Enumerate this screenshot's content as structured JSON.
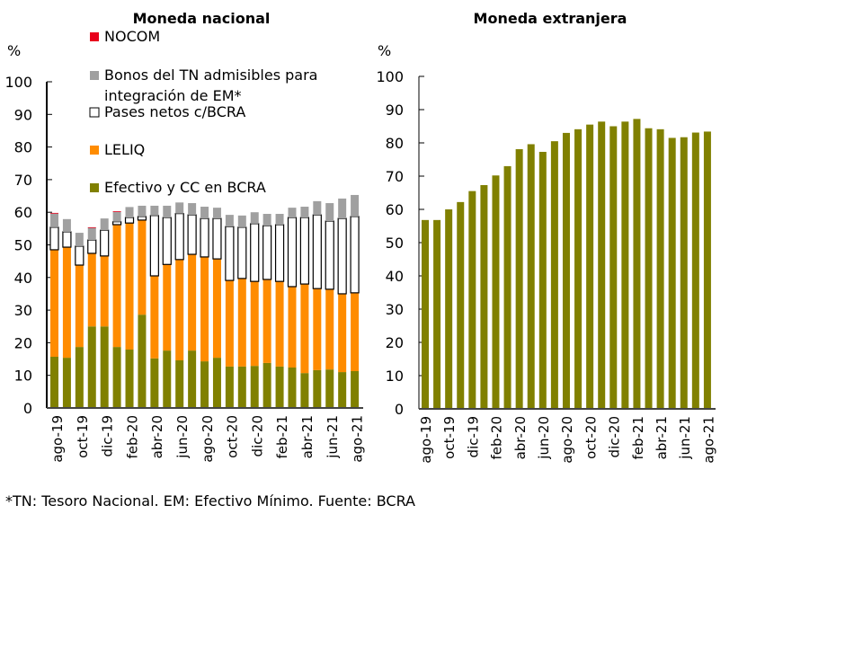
{
  "chart_data": [
    {
      "type": "bar",
      "stacked": true,
      "title": "Moneda nacional",
      "ylabel": "%",
      "xlabel": "",
      "ylim": [
        0,
        100
      ],
      "yticks": [
        0,
        10,
        20,
        30,
        40,
        50,
        60,
        70,
        80,
        90,
        100
      ],
      "grid": false,
      "legend_position": "top-inside",
      "categories": [
        "ago-19",
        "sep-19",
        "oct-19",
        "nov-19",
        "dic-19",
        "ene-20",
        "feb-20",
        "mar-20",
        "abr-20",
        "may-20",
        "jun-20",
        "jul-20",
        "ago-20",
        "sep-20",
        "oct-20",
        "nov-20",
        "dic-20",
        "ene-21",
        "feb-21",
        "mar-21",
        "abr-21",
        "may-21",
        "jun-21",
        "jul-21",
        "ago-21"
      ],
      "tick_labels": [
        "ago-19",
        "oct-19",
        "dic-19",
        "feb-20",
        "abr-20",
        "jun-20",
        "ago-20",
        "oct-20",
        "dic-20",
        "feb-21",
        "abr-21",
        "jun-21",
        "ago-21"
      ],
      "series": [
        {
          "name": "Efectivo y CC en BCRA",
          "color": "#808000",
          "values": [
            15.7,
            15.4,
            18.7,
            25.0,
            25.0,
            18.7,
            17.9,
            28.6,
            15.2,
            17.6,
            14.6,
            17.6,
            14.3,
            15.4,
            12.7,
            12.7,
            12.9,
            13.8,
            12.7,
            12.4,
            10.7,
            11.6,
            11.8,
            11.0,
            11.3
          ]
        },
        {
          "name": "LELIQ",
          "color": "#FF8C00",
          "values": [
            32.8,
            33.9,
            25.1,
            22.4,
            21.6,
            37.5,
            38.8,
            29.0,
            25.3,
            26.4,
            30.9,
            29.5,
            32.0,
            30.3,
            26.4,
            27.0,
            25.9,
            25.6,
            26.1,
            24.8,
            27.3,
            25.0,
            24.6,
            24.0,
            24.0
          ]
        },
        {
          "name": "Pases netos c/BCRA",
          "color": "#FFFFFF",
          "values": [
            6.9,
            4.7,
            5.8,
            4.1,
            7.9,
            0.9,
            1.7,
            1.1,
            18.5,
            14.4,
            14.1,
            12.1,
            11.8,
            12.4,
            16.5,
            15.7,
            17.7,
            16.5,
            17.4,
            21.2,
            20.4,
            22.6,
            20.9,
            23.1,
            23.4
          ]
        },
        {
          "name": "Bonos del TN admisibles para integración de EM*",
          "color": "#A0A0A0",
          "values": [
            4.2,
            3.9,
            4.1,
            3.8,
            3.6,
            3.1,
            3.2,
            3.3,
            3.0,
            3.6,
            3.4,
            3.6,
            3.6,
            3.3,
            3.6,
            3.6,
            3.5,
            3.6,
            3.3,
            3.0,
            3.3,
            4.2,
            5.5,
            6.1,
            6.6
          ]
        },
        {
          "name": "NOCOM",
          "color": "#E8001C",
          "values": [
            0.2,
            0,
            0,
            0.1,
            0,
            0.1,
            0,
            0,
            0,
            0,
            0,
            0,
            0,
            0,
            0,
            0,
            0,
            0,
            0,
            0,
            0,
            0,
            0,
            0,
            0
          ]
        }
      ],
      "legend": [
        {
          "label": "NOCOM",
          "color": "#E8001C"
        },
        {
          "label": "Bonos del TN admisibles para",
          "label2": "integración de EM*",
          "color": "#A0A0A0"
        },
        {
          "label": "Pases netos c/BCRA",
          "color": "#FFFFFF"
        },
        {
          "label": "LELIQ",
          "color": "#FF8C00"
        },
        {
          "label": "Efectivo y CC en BCRA",
          "color": "#808000"
        }
      ]
    },
    {
      "type": "bar",
      "title": "Moneda extranjera",
      "ylabel": "%",
      "xlabel": "",
      "ylim": [
        0,
        100
      ],
      "yticks": [
        0,
        10,
        20,
        30,
        40,
        50,
        60,
        70,
        80,
        90,
        100
      ],
      "grid": false,
      "categories": [
        "ago-19",
        "sep-19",
        "oct-19",
        "nov-19",
        "dic-19",
        "ene-20",
        "feb-20",
        "mar-20",
        "abr-20",
        "may-20",
        "jun-20",
        "jul-20",
        "ago-20",
        "sep-20",
        "oct-20",
        "nov-20",
        "dic-20",
        "ene-21",
        "feb-21",
        "mar-21",
        "abr-21",
        "may-21",
        "jun-21",
        "jul-21",
        "ago-21"
      ],
      "tick_labels": [
        "ago-19",
        "oct-19",
        "dic-19",
        "feb-20",
        "abr-20",
        "jun-20",
        "ago-20",
        "oct-20",
        "dic-20",
        "feb-21",
        "abr-21",
        "jun-21",
        "ago-21"
      ],
      "series": [
        {
          "name": "Moneda extranjera",
          "color": "#808000",
          "values": [
            56.8,
            56.8,
            60.0,
            62.2,
            65.5,
            67.3,
            70.2,
            73.0,
            78.1,
            79.6,
            77.3,
            80.5,
            83.0,
            84.1,
            85.5,
            86.4,
            85.0,
            86.4,
            87.2,
            84.4,
            84.1,
            81.5,
            81.7,
            83.1,
            83.4
          ]
        }
      ]
    }
  ],
  "footnote": "*TN: Tesoro Nacional. EM: Efectivo Mínimo. Fuente: BCRA"
}
